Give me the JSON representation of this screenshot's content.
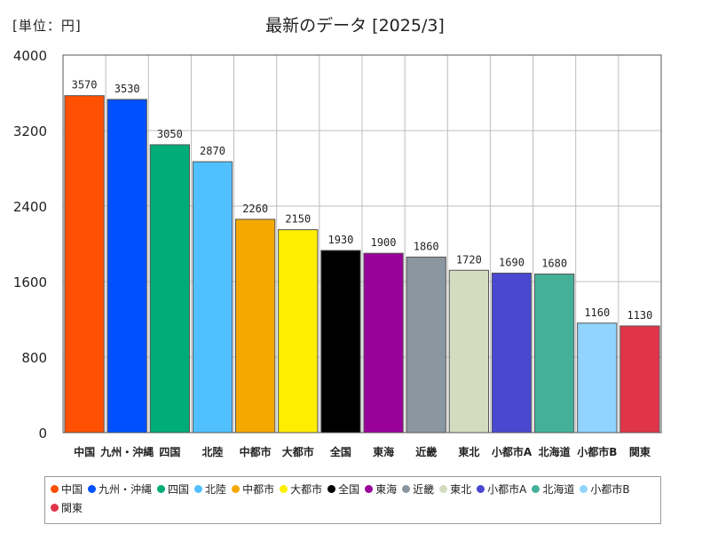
{
  "unit_label": "[単位：円]",
  "title": "最新のデータ [2025/3]",
  "chart_data": {
    "type": "bar",
    "title": "最新のデータ [2025/3]",
    "unit": "[単位：円]",
    "xlabel": "",
    "ylabel": "",
    "ylim": [
      0,
      4000
    ],
    "yticks": [
      0,
      800,
      1600,
      2400,
      3200,
      4000
    ],
    "grid": true,
    "legend_position": "bottom",
    "categories": [
      "中国",
      "九州・沖縄",
      "四国",
      "北陸",
      "中都市",
      "大都市",
      "全国",
      "東海",
      "近畿",
      "東北",
      "小都市A",
      "北海道",
      "小都市B",
      "関東"
    ],
    "values": [
      3570,
      3530,
      3050,
      2870,
      2260,
      2150,
      1930,
      1900,
      1860,
      1720,
      1690,
      1680,
      1160,
      1130
    ],
    "colors": [
      "#ff4f00",
      "#0050ff",
      "#00ac78",
      "#50c0ff",
      "#f5a800",
      "#ffee00",
      "#000000",
      "#990099",
      "#8a96a0",
      "#d4dcc0",
      "#4a48d0",
      "#44b098",
      "#90d4ff",
      "#e03448"
    ]
  }
}
